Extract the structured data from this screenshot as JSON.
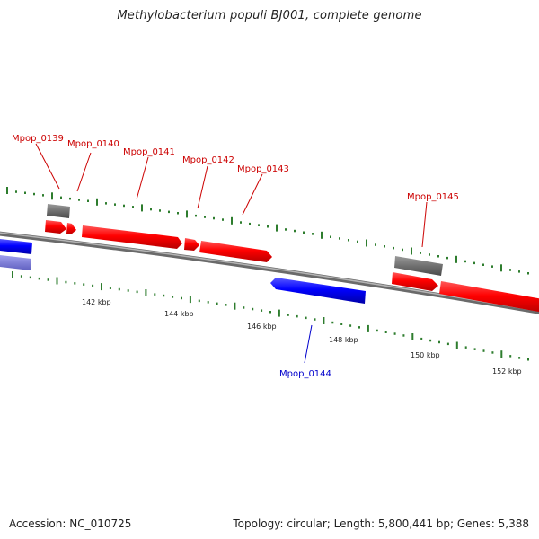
{
  "title": "Methylobacterium populi BJ001, complete genome",
  "footer": {
    "accession": "Accession: NC_010725",
    "summary": "Topology: circular; Length: 5,800,441 bp; Genes: 5,388"
  },
  "colors": {
    "forward_gene": "#ff0000",
    "reverse_gene": "#0000ff",
    "reverse_gene_faded": "#7777dd",
    "rna_gene": "#707070",
    "backbone": "#888888",
    "tick": "#2e7d2e"
  },
  "scale_labels": [
    "142 kbp",
    "144 kbp",
    "146 kbp",
    "148 kbp",
    "150 kbp",
    "152 kbp"
  ],
  "genes": [
    {
      "label": "Mpop_0139",
      "strand": "forward"
    },
    {
      "label": "Mpop_0140",
      "strand": "forward"
    },
    {
      "label": "Mpop_0141",
      "strand": "forward"
    },
    {
      "label": "Mpop_0142",
      "strand": "forward"
    },
    {
      "label": "Mpop_0143",
      "strand": "forward"
    },
    {
      "label": "Mpop_0144",
      "strand": "reverse"
    },
    {
      "label": "Mpop_0145",
      "strand": "forward"
    }
  ]
}
